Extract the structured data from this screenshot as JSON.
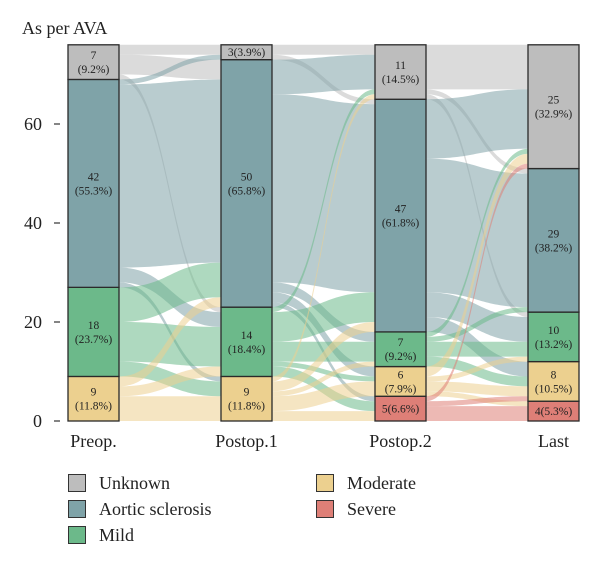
{
  "chart_data": {
    "type": "sankey",
    "ylabel": "As per AVA",
    "y_ticks": [
      0,
      20,
      40,
      60
    ],
    "ylim": [
      0,
      76
    ],
    "stages": [
      "Preop.",
      "Postop.1",
      "Postop.2",
      "Last"
    ],
    "categories": [
      "Severe",
      "Moderate",
      "Mild",
      "Aortic sclerosis",
      "Unknown"
    ],
    "colors": {
      "Unknown": "#bdbdbd",
      "Aortic sclerosis": "#7fa3a8",
      "Mild": "#6cb98a",
      "Moderate": "#ecd08f",
      "Severe": "#de7f77"
    },
    "stage_values": [
      {
        "Severe": 0,
        "Moderate": 9,
        "Mild": 18,
        "Aortic sclerosis": 42,
        "Unknown": 7
      },
      {
        "Severe": 0,
        "Moderate": 9,
        "Mild": 14,
        "Aortic sclerosis": 50,
        "Unknown": 3
      },
      {
        "Severe": 5,
        "Moderate": 6,
        "Mild": 7,
        "Aortic sclerosis": 47,
        "Unknown": 11
      },
      {
        "Severe": 4,
        "Moderate": 8,
        "Mild": 10,
        "Aortic sclerosis": 29,
        "Unknown": 25
      }
    ],
    "stage_labels": [
      {
        "Moderate": [
          "9",
          "(11.8%)"
        ],
        "Mild": [
          "18",
          "(23.7%)"
        ],
        "Aortic sclerosis": [
          "42",
          "(55.3%)"
        ],
        "Unknown": [
          "7",
          "(9.2%)"
        ]
      },
      {
        "Moderate": [
          "9",
          "(11.8%)"
        ],
        "Mild": [
          "14",
          "(18.4%)"
        ],
        "Aortic sclerosis": [
          "50",
          "(65.8%)"
        ],
        "Unknown": [
          "3(3.9%)"
        ]
      },
      {
        "Severe": [
          "5(6.6%)"
        ],
        "Moderate": [
          "6",
          "(7.9%)"
        ],
        "Mild": [
          "7",
          "(9.2%)"
        ],
        "Aortic sclerosis": [
          "47",
          "(61.8%)"
        ],
        "Unknown": [
          "11",
          "(14.5%)"
        ]
      },
      {
        "Severe": [
          "4(5.3%)"
        ],
        "Moderate": [
          "8",
          "(10.5%)"
        ],
        "Mild": [
          "10",
          "(13.2%)"
        ],
        "Aortic sclerosis": [
          "29",
          "(38.2%)"
        ],
        "Unknown": [
          "25",
          "(32.9%)"
        ]
      }
    ],
    "flows": [
      [
        {
          "from": "Unknown",
          "to": "Unknown",
          "value": 2
        },
        {
          "from": "Unknown",
          "to": "Aortic sclerosis",
          "value": 4
        },
        {
          "from": "Unknown",
          "to": "Mild",
          "value": 1
        },
        {
          "from": "Aortic sclerosis",
          "to": "Unknown",
          "value": 1
        },
        {
          "from": "Aortic sclerosis",
          "to": "Aortic sclerosis",
          "value": 37
        },
        {
          "from": "Aortic sclerosis",
          "to": "Mild",
          "value": 3
        },
        {
          "from": "Aortic sclerosis",
          "to": "Moderate",
          "value": 1
        },
        {
          "from": "Mild",
          "to": "Aortic sclerosis",
          "value": 7
        },
        {
          "from": "Mild",
          "to": "Mild",
          "value": 8
        },
        {
          "from": "Mild",
          "to": "Moderate",
          "value": 3
        },
        {
          "from": "Moderate",
          "to": "Aortic sclerosis",
          "value": 2
        },
        {
          "from": "Moderate",
          "to": "Mild",
          "value": 2
        },
        {
          "from": "Moderate",
          "to": "Moderate",
          "value": 5
        }
      ],
      [
        {
          "from": "Unknown",
          "to": "Unknown",
          "value": 2
        },
        {
          "from": "Unknown",
          "to": "Aortic sclerosis",
          "value": 1
        },
        {
          "from": "Aortic sclerosis",
          "to": "Unknown",
          "value": 7
        },
        {
          "from": "Aortic sclerosis",
          "to": "Aortic sclerosis",
          "value": 38
        },
        {
          "from": "Aortic sclerosis",
          "to": "Mild",
          "value": 2
        },
        {
          "from": "Aortic sclerosis",
          "to": "Moderate",
          "value": 2
        },
        {
          "from": "Aortic sclerosis",
          "to": "Severe",
          "value": 1
        },
        {
          "from": "Mild",
          "to": "Unknown",
          "value": 1
        },
        {
          "from": "Mild",
          "to": "Aortic sclerosis",
          "value": 6
        },
        {
          "from": "Mild",
          "to": "Mild",
          "value": 4
        },
        {
          "from": "Mild",
          "to": "Moderate",
          "value": 1
        },
        {
          "from": "Mild",
          "to": "Severe",
          "value": 2
        },
        {
          "from": "Moderate",
          "to": "Unknown",
          "value": 1
        },
        {
          "from": "Moderate",
          "to": "Aortic sclerosis",
          "value": 2
        },
        {
          "from": "Moderate",
          "to": "Mild",
          "value": 1
        },
        {
          "from": "Moderate",
          "to": "Moderate",
          "value": 3
        },
        {
          "from": "Moderate",
          "to": "Severe",
          "value": 2
        }
      ],
      [
        {
          "from": "Unknown",
          "to": "Unknown",
          "value": 9
        },
        {
          "from": "Unknown",
          "to": "Aortic sclerosis",
          "value": 1
        },
        {
          "from": "Unknown",
          "to": "Mild",
          "value": 1
        },
        {
          "from": "Aortic sclerosis",
          "to": "Unknown",
          "value": 12
        },
        {
          "from": "Aortic sclerosis",
          "to": "Aortic sclerosis",
          "value": 27
        },
        {
          "from": "Aortic sclerosis",
          "to": "Mild",
          "value": 5
        },
        {
          "from": "Aortic sclerosis",
          "to": "Moderate",
          "value": 3
        },
        {
          "from": "Mild",
          "to": "Unknown",
          "value": 1
        },
        {
          "from": "Mild",
          "to": "Aortic sclerosis",
          "value": 1
        },
        {
          "from": "Mild",
          "to": "Mild",
          "value": 3
        },
        {
          "from": "Mild",
          "to": "Moderate",
          "value": 2
        },
        {
          "from": "Moderate",
          "to": "Unknown",
          "value": 2
        },
        {
          "from": "Mild",
          "to": "Severe",
          "value": 0
        },
        {
          "from": "Moderate",
          "to": "Mild",
          "value": 1
        },
        {
          "from": "Moderate",
          "to": "Moderate",
          "value": 2
        },
        {
          "from": "Moderate",
          "to": "Severe",
          "value": 1
        },
        {
          "from": "Severe",
          "to": "Unknown",
          "value": 1
        },
        {
          "from": "Severe",
          "to": "Mild",
          "value": 0
        },
        {
          "from": "Severe",
          "to": "Moderate",
          "value": 1
        },
        {
          "from": "Severe",
          "to": "Severe",
          "value": 3
        }
      ]
    ],
    "legend": [
      {
        "label": "Unknown",
        "key": "Unknown"
      },
      {
        "label": "Moderate",
        "key": "Moderate"
      },
      {
        "label": "Aortic sclerosis",
        "key": "Aortic sclerosis"
      },
      {
        "label": "Severe",
        "key": "Severe"
      },
      {
        "label": "Mild",
        "key": "Mild"
      }
    ]
  }
}
